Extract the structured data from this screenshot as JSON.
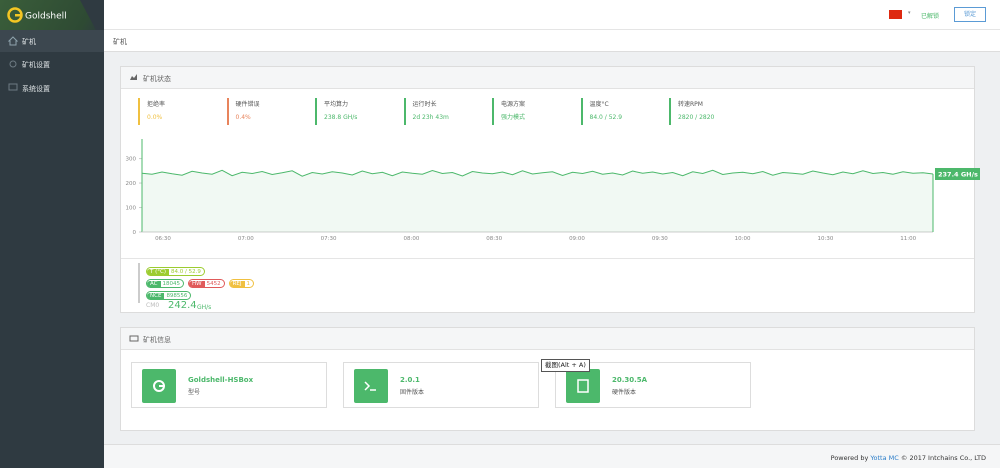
{
  "brand": "Goldshell",
  "menu": [
    "矿机",
    "矿机设置",
    "系统设置"
  ],
  "topbar": {
    "unlocked": "已解锁",
    "lock_button": "锁定"
  },
  "breadcrumb": "矿机",
  "status_panel": {
    "title": "矿机状态",
    "stats": [
      {
        "label": "拒绝率",
        "value": "0.0%",
        "color": "#f0c040"
      },
      {
        "label": "硬件错误",
        "value": "0.4%",
        "color": "#e8845c"
      },
      {
        "label": "平均算力",
        "value": "238.8 GH/s",
        "color": "#4cb86b"
      },
      {
        "label": "运行时长",
        "value": "2d 23h 43m",
        "color": "#4cb86b"
      },
      {
        "label": "电源方案",
        "value": "强力模式",
        "color": "#4cb86b"
      },
      {
        "label": "温度°C",
        "value": "84.0 / 52.9",
        "color": "#4cb86b"
      },
      {
        "label": "转速RPM",
        "value": "2820 / 2820",
        "color": "#4cb86b"
      }
    ],
    "badges": [
      {
        "label": "T (°C)",
        "value": "84.0 / 52.9",
        "color": "#9ccc30"
      },
      {
        "label": "AC",
        "value": "18045",
        "color": "#4cb86b"
      },
      {
        "label": "HW",
        "value": "5452",
        "color": "#e05a5a"
      },
      {
        "label": "REJ",
        "value": "1",
        "color": "#f0c040"
      },
      {
        "label": "NCE",
        "value": "898556",
        "color": "#4cb86b"
      }
    ],
    "device": "CM0",
    "hashrate": "242.4",
    "hashrate_unit": "GH/s"
  },
  "hashrate_chart": {
    "type": "line",
    "color": "#4cb86b",
    "ylim": [
      0,
      380
    ],
    "yticks": [
      0,
      100,
      200,
      300
    ],
    "x_labels": [
      "06:30",
      "07:00",
      "07:30",
      "08:00",
      "08:30",
      "09:00",
      "09:30",
      "10:00",
      "10:30",
      "11:00"
    ],
    "current_label": "237.4 GH/s",
    "values": [
      240,
      236,
      245,
      238,
      232,
      248,
      241,
      236,
      252,
      230,
      244,
      239,
      247,
      235,
      242,
      250,
      228,
      243,
      237,
      246,
      241,
      233,
      249,
      238,
      244,
      230,
      245,
      240,
      236,
      251,
      239,
      243,
      229,
      247,
      241,
      238,
      245,
      234,
      250,
      237,
      242,
      246,
      231,
      244,
      239,
      248,
      236,
      241,
      233,
      249,
      240,
      245,
      237,
      243,
      230,
      246,
      239,
      252,
      235,
      241,
      244,
      238,
      247,
      232,
      243,
      240,
      236,
      249,
      241,
      234,
      245,
      238,
      250,
      239,
      243,
      236,
      246,
      240,
      242,
      237
    ]
  },
  "info_panel": {
    "title": "矿机信息",
    "cards": [
      {
        "value": "Goldshell-HSBox",
        "label": "型号"
      },
      {
        "value": "2.0.1",
        "label": "固件版本"
      },
      {
        "value": "20.30.5A",
        "label": "硬件版本"
      }
    ]
  },
  "tooltip": "截图(Alt + A)",
  "footer": {
    "prefix": "Powered by",
    "link": "Yotta MC",
    "suffix": "© 2017 Intchains Co., LTD"
  }
}
